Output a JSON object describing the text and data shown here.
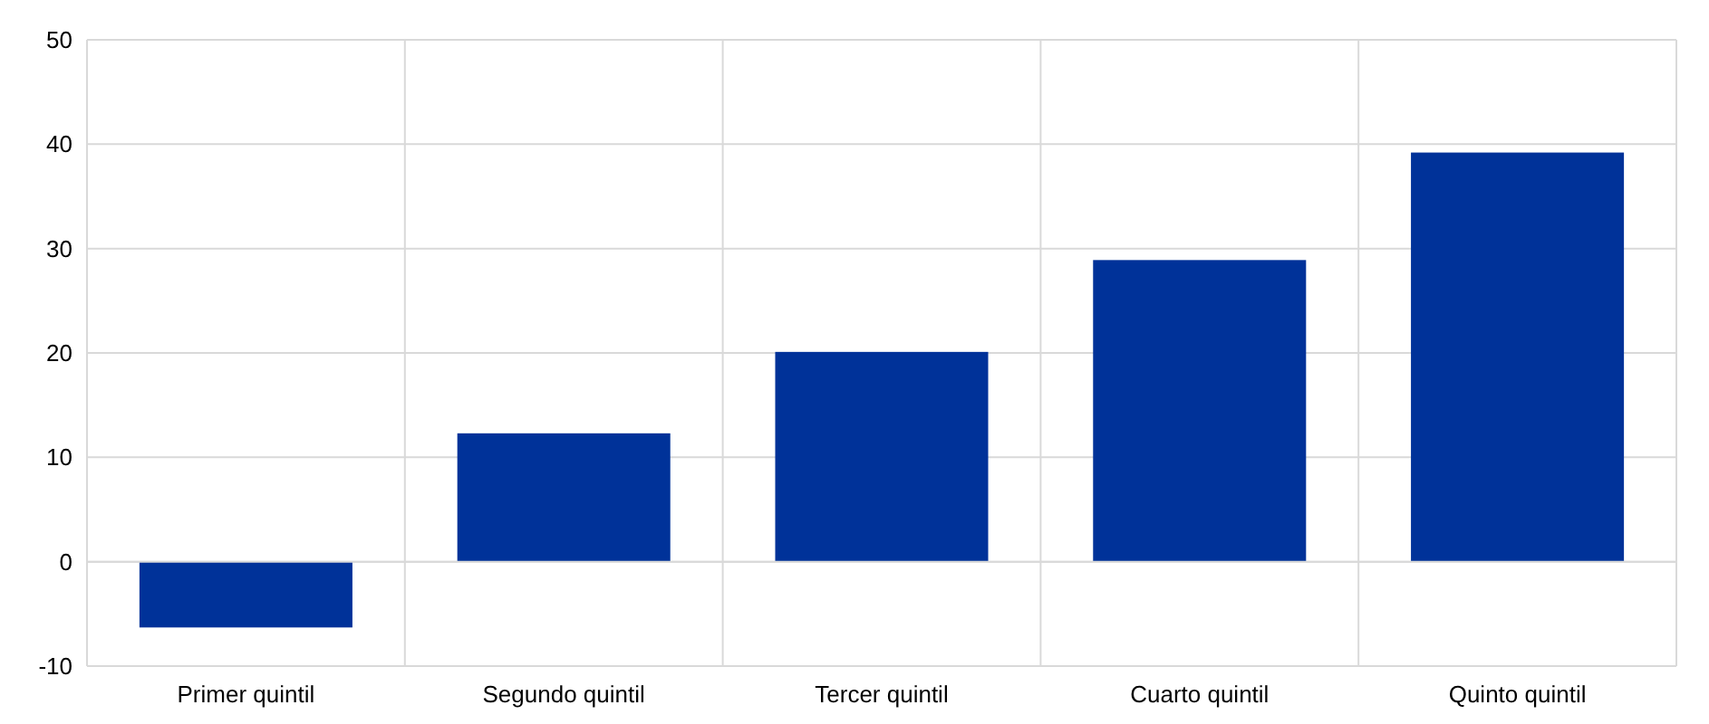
{
  "chart_data": {
    "type": "bar",
    "categories": [
      "Primer quintil",
      "Segundo quintil",
      "Tercer quintil",
      "Cuarto quintil",
      "Quinto quintil"
    ],
    "values": [
      -6.3,
      12.3,
      20.1,
      28.9,
      39.2
    ],
    "color": "#003299",
    "ylim": [
      -10,
      50
    ],
    "yticks": [
      -10,
      0,
      10,
      20,
      30,
      40,
      50
    ],
    "grid": true
  }
}
